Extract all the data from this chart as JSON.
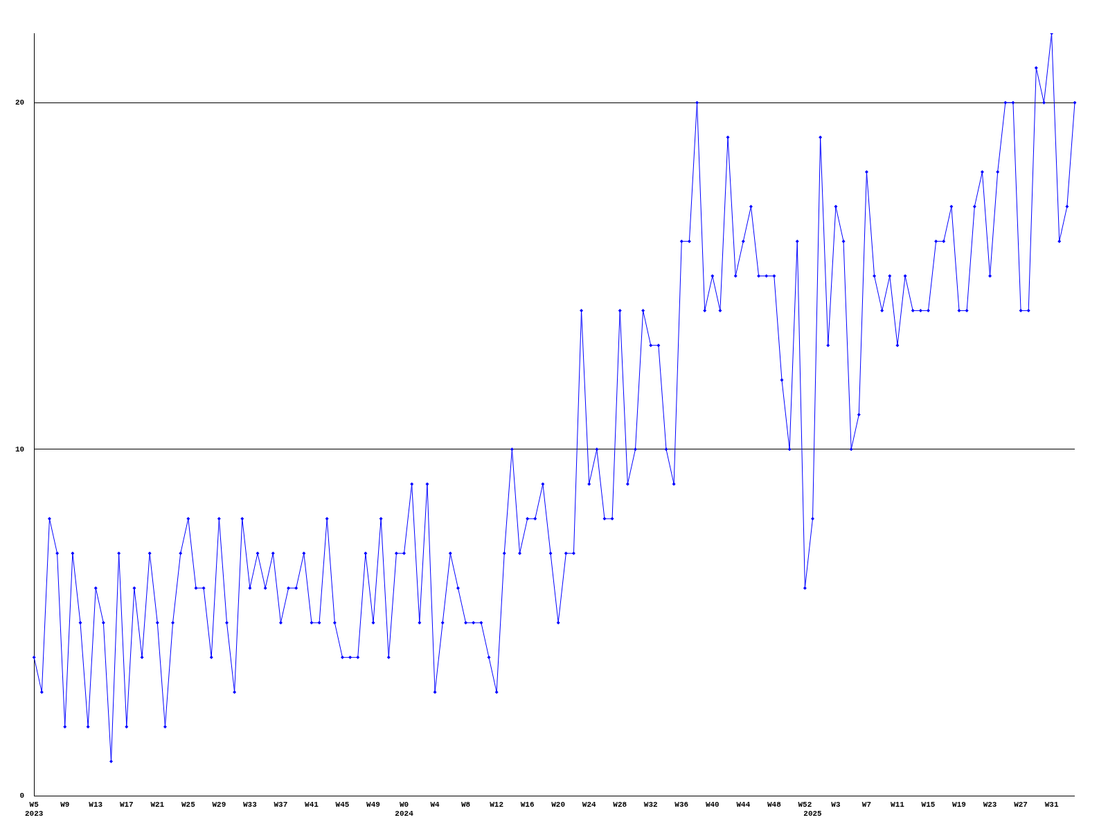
{
  "chart_data": {
    "type": "line",
    "categories": [
      "W5\n2023",
      null,
      null,
      null,
      "W9",
      null,
      null,
      null,
      "W13",
      null,
      null,
      null,
      "W17",
      null,
      null,
      null,
      "W21",
      null,
      null,
      null,
      "W25",
      null,
      null,
      null,
      "W29",
      null,
      null,
      null,
      "W33",
      null,
      null,
      null,
      "W37",
      null,
      null,
      null,
      "W41",
      null,
      null,
      null,
      "W45",
      null,
      null,
      null,
      "W49",
      null,
      null,
      null,
      "W0\n2024",
      null,
      null,
      null,
      "W4",
      null,
      null,
      null,
      "W8",
      null,
      null,
      null,
      "W12",
      null,
      null,
      null,
      "W16",
      null,
      null,
      null,
      "W20",
      null,
      null,
      null,
      "W24",
      null,
      null,
      null,
      "W28",
      null,
      null,
      null,
      "W32",
      null,
      null,
      null,
      "W36",
      null,
      null,
      null,
      "W40",
      null,
      null,
      null,
      "W44",
      null,
      null,
      null,
      "W48",
      null,
      null,
      null,
      "W52",
      "\n2025",
      null,
      null,
      "W3",
      null,
      null,
      null,
      "W7",
      null,
      null,
      null,
      "W11",
      null,
      null,
      null,
      "W15",
      null,
      null,
      null,
      "W19",
      null,
      null,
      null,
      "W23",
      null,
      null,
      null,
      "W27",
      null,
      null,
      null,
      "W31",
      null,
      null,
      null
    ],
    "series": [
      {
        "color": "#0000ff",
        "values": [
          4,
          3,
          8,
          7,
          2,
          7,
          5,
          2,
          6,
          5,
          1,
          7,
          2,
          6,
          4,
          7,
          5,
          2,
          5,
          7,
          8,
          6,
          6,
          4,
          8,
          5,
          3,
          8,
          6,
          7,
          6,
          7,
          5,
          6,
          6,
          7,
          5,
          5,
          8,
          5,
          4,
          4,
          4,
          7,
          5,
          8,
          4,
          7,
          7,
          9,
          5,
          9,
          3,
          5,
          7,
          6,
          5,
          5,
          5,
          4,
          3,
          7,
          10,
          7,
          8,
          8,
          9,
          7,
          5,
          7,
          7,
          14,
          9,
          10,
          8,
          8,
          14,
          9,
          10,
          14,
          13,
          13,
          10,
          9,
          16,
          16,
          20,
          14,
          15,
          14,
          19,
          15,
          16,
          17,
          15,
          15,
          15,
          12,
          10,
          16,
          6,
          8,
          19,
          13,
          17,
          16,
          10,
          11,
          18,
          15,
          14,
          15,
          13,
          15,
          14,
          14,
          14,
          16,
          16,
          17,
          14,
          14,
          17,
          18,
          15,
          18,
          20,
          20,
          14,
          14,
          21,
          20,
          22,
          16,
          17,
          20
        ]
      }
    ],
    "ylim": [
      0,
      22
    ],
    "yticks": [
      0,
      10,
      20
    ],
    "grid": "y",
    "marker": "diamond",
    "line_style": "solid",
    "legend": false
  }
}
